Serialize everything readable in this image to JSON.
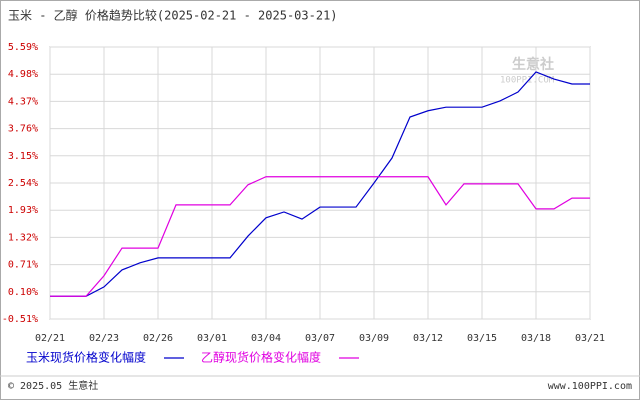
{
  "chart_data": {
    "type": "line",
    "title": "玉米 - 乙醇 价格趋势比较(2025-02-21 - 2025-03-21)",
    "watermark": [
      "生意社",
      "100PPI.COM"
    ],
    "categories": [
      "02/21",
      null,
      null,
      "02/23",
      null,
      null,
      "02/26",
      null,
      null,
      "03/01",
      null,
      null,
      "03/04",
      null,
      null,
      "03/07",
      null,
      null,
      "03/09",
      null,
      null,
      "03/12",
      null,
      null,
      "03/15",
      null,
      null,
      "03/18",
      null,
      null,
      "03/21"
    ],
    "series": [
      {
        "name": "玉米现货价格变化幅度",
        "color": "#0000cc",
        "values": [
          0,
          0,
          0,
          0.21,
          0.59,
          0.75,
          0.86,
          0.86,
          0.86,
          0.86,
          0.86,
          1.35,
          1.76,
          1.89,
          1.73,
          2.0,
          2.0,
          2.0,
          2.54,
          3.1,
          4.02,
          4.16,
          4.24,
          4.24,
          4.24,
          4.38,
          4.58,
          5.03,
          4.87,
          4.76,
          4.76
        ]
      },
      {
        "name": "乙醇现货价格变化幅度",
        "color": "#e000e0",
        "values": [
          0,
          0,
          0,
          0.46,
          1.08,
          1.08,
          1.08,
          2.05,
          2.05,
          2.05,
          2.05,
          2.5,
          2.68,
          2.68,
          2.68,
          2.68,
          2.68,
          2.68,
          2.68,
          2.68,
          2.68,
          2.68,
          2.05,
          2.52,
          2.52,
          2.52,
          2.52,
          1.96,
          1.96,
          2.2,
          2.2
        ]
      }
    ],
    "ylim": [
      -0.51,
      5.59
    ],
    "yticks": [
      {
        "value": -0.51,
        "label": "-0.51%"
      },
      {
        "value": 0.1,
        "label": "0.10%"
      },
      {
        "value": 0.71,
        "label": "0.71%"
      },
      {
        "value": 1.32,
        "label": "1.32%"
      },
      {
        "value": 1.93,
        "label": "1.93%"
      },
      {
        "value": 2.54,
        "label": "2.54%"
      },
      {
        "value": 3.15,
        "label": "3.15%"
      },
      {
        "value": 3.76,
        "label": "3.76%"
      },
      {
        "value": 4.37,
        "label": "4.37%"
      },
      {
        "value": 4.98,
        "label": "4.98%"
      },
      {
        "value": 5.59,
        "label": "5.59%"
      }
    ],
    "grid": true,
    "footer": {
      "left": "© 2025.05 生意社",
      "right": "www.100PPI.com"
    }
  }
}
